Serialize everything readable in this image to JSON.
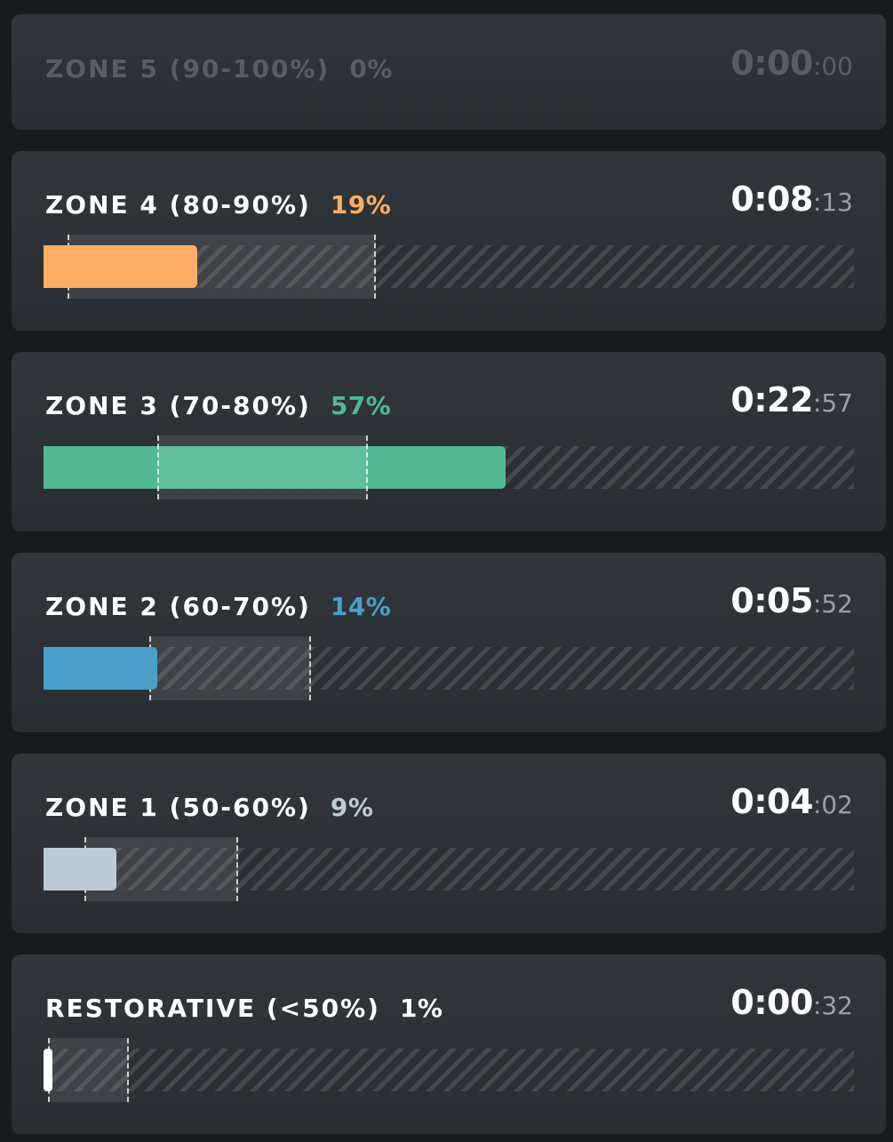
{
  "zones": [
    {
      "id": "zone-5",
      "label": "ZONE 5 (90-100%)",
      "percent_label": "0%",
      "percent": 0,
      "time_main": "0:00",
      "time_sec": ":00",
      "color": "#575d63",
      "active": false
    },
    {
      "id": "zone-4",
      "label": "ZONE 4 (80-90%)",
      "percent_label": "19%",
      "percent": 19,
      "time_main": "0:08",
      "time_sec": ":13",
      "color": "#ffad66",
      "active": true,
      "target_range": [
        3,
        41
      ]
    },
    {
      "id": "zone-3",
      "label": "ZONE 3 (70-80%)",
      "percent_label": "57%",
      "percent": 57,
      "time_main": "0:22",
      "time_sec": ":57",
      "color": "#52b894",
      "active": true,
      "target_range": [
        14,
        40
      ]
    },
    {
      "id": "zone-2",
      "label": "ZONE 2 (60-70%)",
      "percent_label": "14%",
      "percent": 14,
      "time_main": "0:05",
      "time_sec": ":52",
      "color": "#4a9fc9",
      "active": true,
      "target_range": [
        13,
        33
      ]
    },
    {
      "id": "zone-1",
      "label": "ZONE 1 (50-60%)",
      "percent_label": "9%",
      "percent": 9,
      "time_main": "0:04",
      "time_sec": ":02",
      "color": "#bcccd6",
      "active": true,
      "target_range": [
        5,
        24
      ]
    },
    {
      "id": "restorative",
      "label": "RESTORATIVE (<50%)",
      "percent_label": "1%",
      "percent": 1,
      "time_main": "0:00",
      "time_sec": ":32",
      "color": "#ffffff",
      "active": true,
      "target_range": [
        0.6,
        10.5
      ]
    }
  ]
}
